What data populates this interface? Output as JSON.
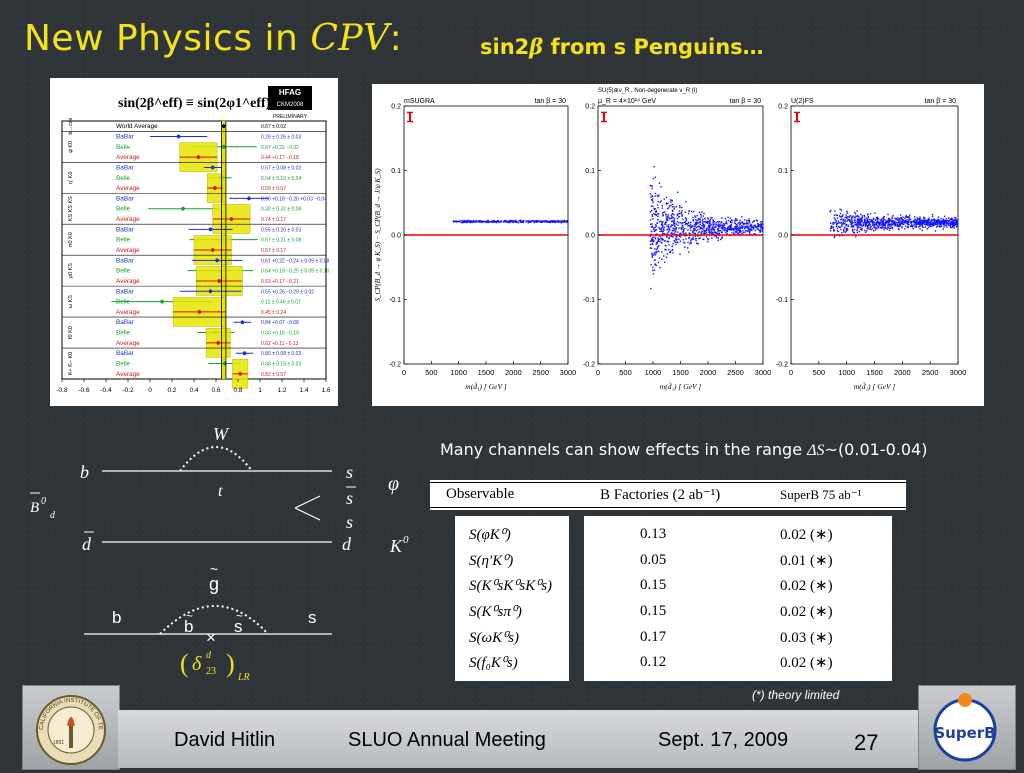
{
  "slide": {
    "title_main_prefix": "New Physics in ",
    "title_main_cpv": "CPV",
    "title_main_colon": ":",
    "title_sub_prefix": "sin2",
    "title_sub_beta": "β",
    "title_sub_suffix": " from s Penguins…",
    "range_text_prefix": "Many channels can show effects in the range ",
    "range_text_symbol": "ΔS",
    "range_text_suffix": "~(0.01-0.04)",
    "note": "(*) theory limited"
  },
  "hfag": {
    "title": "sin(2β^eff) ≡ sin(2φ1^eff)",
    "badge_top": "HFAG",
    "badge_mid": "CKM2008",
    "badge_bottom": "PRELIMINARY",
    "x_ticks": [
      "-0.8",
      "-0.6",
      "-0.4",
      "-0.2",
      "0",
      "0.2",
      "0.4",
      "0.6",
      "0.8",
      "1",
      "1.2",
      "1.4",
      "1.6"
    ]
  },
  "feynman": {
    "W": "W",
    "b": "b",
    "t": "t",
    "s1": "s",
    "sbar": "s",
    "s2": "s",
    "d": "d",
    "dbar": "d",
    "B0": "B",
    "B0_sup": "0",
    "B0_sub": "d",
    "phi": "φ",
    "K0": "K",
    "K0_sup": "0",
    "gluino": "g",
    "b2": "b",
    "s3": "s",
    "bt": "b",
    "st": "s",
    "cross": "×",
    "delta": "δ",
    "delta_sup": "d",
    "delta_sub": "23",
    "delta_lr": "LR"
  },
  "table": {
    "header_observable": "Observable",
    "header_bfactories": "B Factories (2 ab⁻¹)",
    "header_superb": "SuperB 75 ab⁻¹",
    "rows": [
      {
        "obs": "S(φK⁰)",
        "bf": "0.13",
        "sb": "0.02 (∗)"
      },
      {
        "obs": "S(η′K⁰)",
        "bf": "0.05",
        "sb": "0.01 (∗)"
      },
      {
        "obs": "S(K⁰sK⁰sK⁰s)",
        "bf": "0.15",
        "sb": "0.02 (∗)"
      },
      {
        "obs": "S(K⁰sπ⁰)",
        "bf": "0.15",
        "sb": "0.02 (∗)"
      },
      {
        "obs": "S(ωK⁰s)",
        "bf": "0.17",
        "sb": "0.03 (∗)"
      },
      {
        "obs": "S(f₀K⁰s)",
        "bf": "0.12",
        "sb": "0.02 (∗)"
      }
    ]
  },
  "footer": {
    "author": "David Hitlin",
    "meeting": "SLUO Annual Meeting",
    "date": "Sept. 17, 2009",
    "page": "27",
    "caltech_text": "CALIFORNIA INSTITUTE OF TECHNOLOGY",
    "caltech_year": "1891",
    "superb_text": "SuperB"
  },
  "chart_data": [
    {
      "type": "scatter",
      "title": "sin(2β^eff) ≡ sin(2φ1^eff)",
      "xlim": [
        -0.8,
        1.6
      ],
      "reference_band": {
        "center": 0.67,
        "halfwidth": 0.02,
        "label": "World Average"
      },
      "groups": [
        {
          "name": "b→ccs",
          "rows": [
            {
              "exp": "World Average",
              "value": 0.67,
              "err": 0.02
            }
          ]
        },
        {
          "name": "φ K0",
          "rows": [
            {
              "exp": "BaBar",
              "value": 0.26,
              "err": 0.26
            },
            {
              "exp": "Belle",
              "value": 0.67,
              "err": 0.3
            },
            {
              "exp": "Average",
              "value": 0.44,
              "err": 0.17
            }
          ]
        },
        {
          "name": "η′ K0",
          "rows": [
            {
              "exp": "BaBar",
              "value": 0.57,
              "err": 0.08
            },
            {
              "exp": "Belle",
              "value": 0.64,
              "err": 0.1
            },
            {
              "exp": "Average",
              "value": 0.59,
              "err": 0.07
            }
          ]
        },
        {
          "name": "KS KS KS",
          "rows": [
            {
              "exp": "BaBar",
              "value": 0.9,
              "err": 0.18
            },
            {
              "exp": "Belle",
              "value": 0.3,
              "err": 0.32
            },
            {
              "exp": "Average",
              "value": 0.74,
              "err": 0.17
            }
          ]
        },
        {
          "name": "π0 K0",
          "rows": [
            {
              "exp": "BaBar",
              "value": 0.55,
              "err": 0.2
            },
            {
              "exp": "Belle",
              "value": 0.67,
              "err": 0.31
            },
            {
              "exp": "Average",
              "value": 0.57,
              "err": 0.17
            }
          ]
        },
        {
          "name": "ρ0 KS",
          "rows": [
            {
              "exp": "BaBar",
              "value": 0.61,
              "err": 0.23
            },
            {
              "exp": "Belle",
              "value": 0.64,
              "err": 0.3
            },
            {
              "exp": "Average",
              "value": 0.63,
              "err": 0.21
            }
          ]
        },
        {
          "name": "ω KS",
          "rows": [
            {
              "exp": "BaBar",
              "value": 0.55,
              "err": 0.28
            },
            {
              "exp": "Belle",
              "value": 0.11,
              "err": 0.46
            },
            {
              "exp": "Average",
              "value": 0.45,
              "err": 0.24
            }
          ]
        },
        {
          "name": "f0 K0",
          "rows": [
            {
              "exp": "BaBar",
              "value": 0.84,
              "err": 0.08
            },
            {
              "exp": "Belle",
              "value": 0.6,
              "err": 0.17
            },
            {
              "exp": "Average",
              "value": 0.62,
              "err": 0.11
            }
          ]
        },
        {
          "name": "K+ K− K0",
          "rows": [
            {
              "exp": "BaBar",
              "value": 0.86,
              "err": 0.08
            },
            {
              "exp": "Belle",
              "value": 0.68,
              "err": 0.15
            },
            {
              "exp": "Average",
              "value": 0.82,
              "err": 0.07
            }
          ]
        }
      ],
      "row_labels": [
        {
          "exp": "World Average",
          "text": "0.67 ± 0.02"
        },
        {
          "exp": "BaBar",
          "text": "0.26 ± 0.26 ± 0.03"
        },
        {
          "exp": "Belle",
          "text": "0.67 +0.22 −0.32"
        },
        {
          "exp": "Average",
          "text": "0.44 +0.17 −0.18"
        },
        {
          "exp": "BaBar",
          "text": "0.57 ± 0.08 ± 0.02"
        },
        {
          "exp": "Belle",
          "text": "0.64 ± 0.10 ± 0.04"
        },
        {
          "exp": "Average",
          "text": "0.59 ± 0.07"
        },
        {
          "exp": "BaBar",
          "text": "0.90 +0.18 −0.20 +0.03 −0.04"
        },
        {
          "exp": "Belle",
          "text": "0.30 ± 0.32 ± 0.08"
        },
        {
          "exp": "Average",
          "text": "0.74 ± 0.17"
        },
        {
          "exp": "BaBar",
          "text": "0.55 ± 0.20 ± 0.03"
        },
        {
          "exp": "Belle",
          "text": "0.67 ± 0.31 ± 0.08"
        },
        {
          "exp": "Average",
          "text": "0.57 ± 0.17"
        },
        {
          "exp": "BaBar",
          "text": "0.61 +0.22 −0.24 ± 0.09 ± 0.08"
        },
        {
          "exp": "Belle",
          "text": "0.64 +0.19 −0.25 ± 0.09 ± 0.10"
        },
        {
          "exp": "Average",
          "text": "0.63 +0.17 −0.21"
        },
        {
          "exp": "BaBar",
          "text": "0.55 +0.26 −0.29 ± 0.02"
        },
        {
          "exp": "Belle",
          "text": "0.11 ± 0.46 ± 0.07"
        },
        {
          "exp": "Average",
          "text": "0.45 ± 0.24"
        },
        {
          "exp": "BaBar",
          "text": "0.84 +0.07 −0.08"
        },
        {
          "exp": "Belle",
          "text": "0.60 +0.16 −0.19"
        },
        {
          "exp": "Average",
          "text": "0.62 +0.11 −0.13"
        },
        {
          "exp": "BaBar",
          "text": "0.86 ± 0.08 ± 0.03"
        },
        {
          "exp": "Belle",
          "text": "0.68 ± 0.15 ± 0.03"
        },
        {
          "exp": "Average",
          "text": "0.82 ± 0.07"
        }
      ]
    },
    {
      "type": "scatter",
      "panels": [
        {
          "label": "mSUGRA",
          "corner": "tan β = 30"
        },
        {
          "label": "μ_R = 4×10¹⁴ GeV",
          "corner": "tan β = 30",
          "header": "SU(5)⊕ν_R , Non-degenerate ν_R (I)"
        },
        {
          "label": "U(2)FS",
          "corner": "tan β = 30"
        }
      ],
      "xlabel": "m(d̃₁) [ GeV ]",
      "ylabel": "S_CP(B_d → φ K_S) − S_CP(B_d → J/ψ K_S)",
      "xlim": [
        0,
        3000
      ],
      "ylim": [
        -0.2,
        0.2
      ],
      "x_ticks": [
        "0",
        "500",
        "1000",
        "1500",
        "2000",
        "2500",
        "3000"
      ],
      "y_ticks": [
        "0.2",
        "0.1",
        "0.0",
        "-0.1",
        "-0.2"
      ],
      "reference_line_y": 0.0
    }
  ]
}
